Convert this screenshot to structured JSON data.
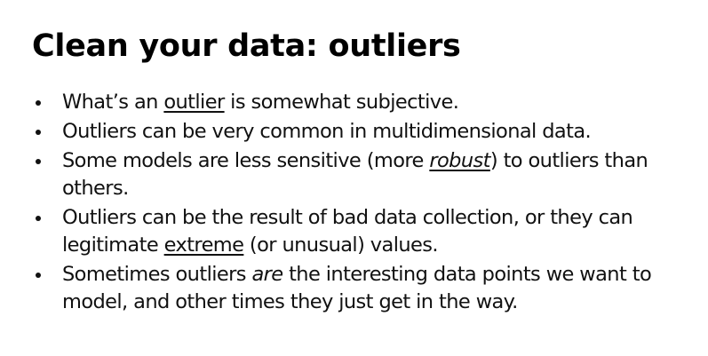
{
  "slide": {
    "title": "Clean your data: outliers",
    "bullets": [
      {
        "parts": [
          {
            "text": "What’s an ",
            "style": ""
          },
          {
            "text": "outlier",
            "style": "u"
          },
          {
            "text": " is somewhat subjective.",
            "style": ""
          }
        ]
      },
      {
        "parts": [
          {
            "text": "Outliers can be very common in multidimensional data.",
            "style": ""
          }
        ]
      },
      {
        "parts": [
          {
            "text": "Some models are less sensitive (more ",
            "style": ""
          },
          {
            "text": "robust",
            "style": "ui"
          },
          {
            "text": ") to outliers than others.",
            "style": ""
          }
        ]
      },
      {
        "parts": [
          {
            "text": "Outliers can be the result of bad data collection, or they can legitimate ",
            "style": ""
          },
          {
            "text": "extreme",
            "style": "u"
          },
          {
            "text": " (or unusual) values.",
            "style": ""
          }
        ]
      },
      {
        "parts": [
          {
            "text": "Sometimes outliers ",
            "style": ""
          },
          {
            "text": "are",
            "style": "i"
          },
          {
            "text": " the interesting data points we want to model, and other times they just get in the way.",
            "style": ""
          }
        ]
      }
    ]
  }
}
